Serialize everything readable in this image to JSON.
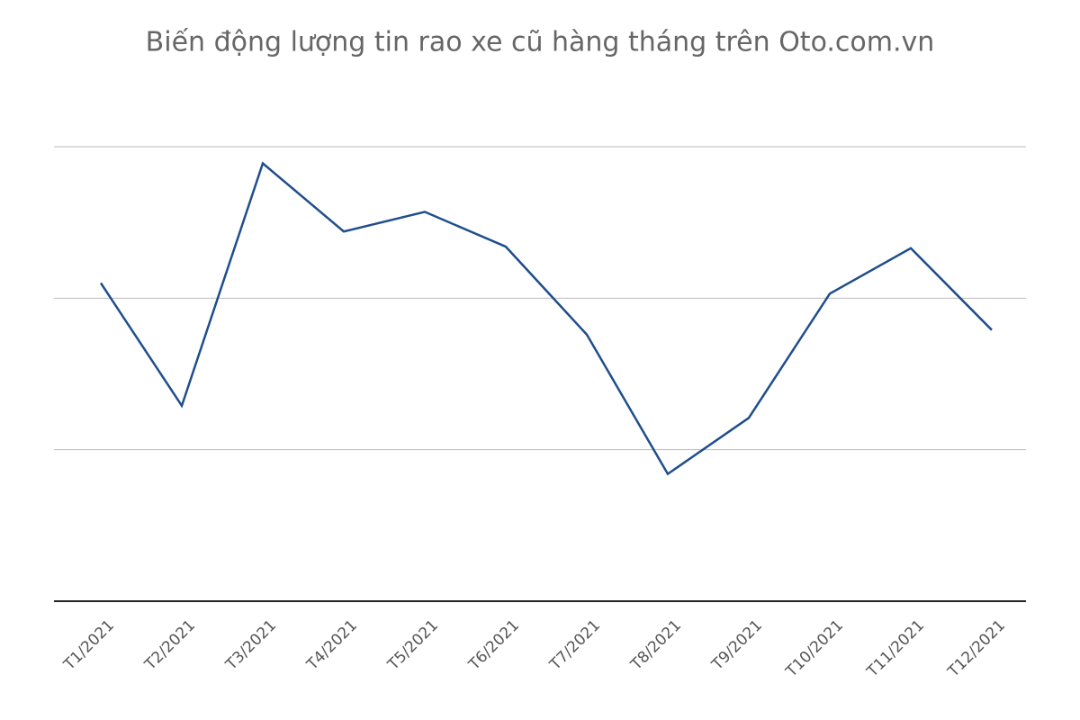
{
  "chart_data": {
    "type": "line",
    "title": "Biến động lượng tin rao xe cũ hàng tháng trên Oto.com.vn",
    "categories": [
      "T1/2021",
      "T2/2021",
      "T3/2021",
      "T4/2021",
      "T5/2021",
      "T6/2021",
      "T7/2021",
      "T8/2021",
      "T9/2021",
      "T10/2021",
      "T11/2021",
      "T12/2021"
    ],
    "series": [
      {
        "color": "#1f4e8c",
        "values": [
          2.1,
          1.29,
          2.89,
          2.44,
          2.57,
          2.34,
          1.76,
          0.84,
          1.21,
          2.03,
          2.33,
          1.79
        ]
      }
    ],
    "ylim": [
      0,
      3
    ],
    "yticks": [
      0,
      1,
      2,
      3
    ],
    "ytick_labels": false,
    "grid": true
  }
}
